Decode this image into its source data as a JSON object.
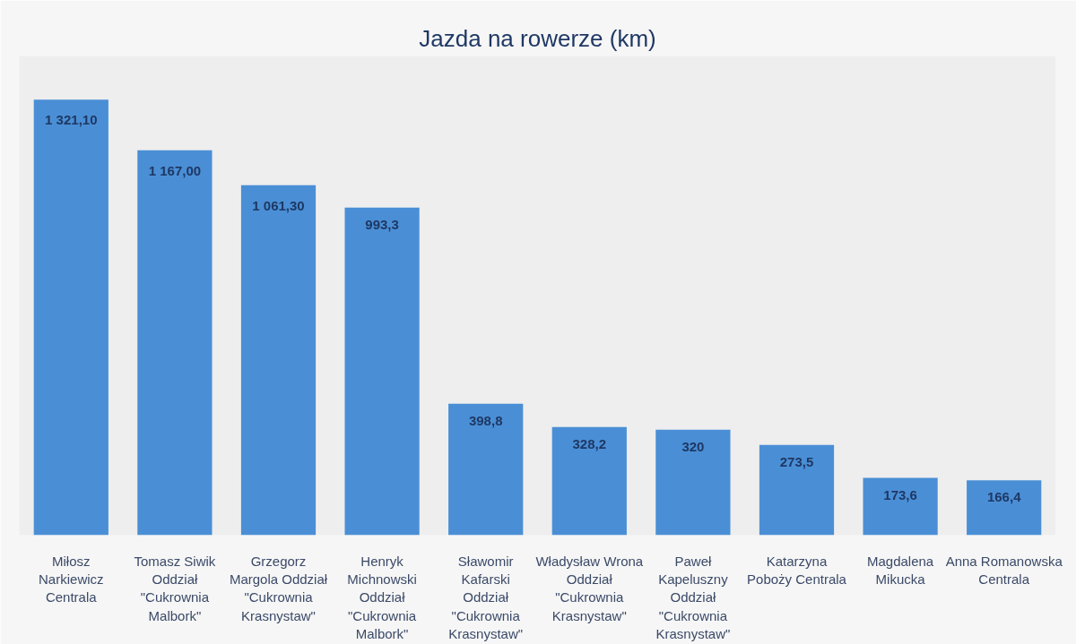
{
  "chart_data": {
    "type": "bar",
    "title": "Jazda na rowerze (km)",
    "categories": [
      "Miłosz Narkiewicz Centrala",
      "Tomasz Siwik Oddział \"Cukrownia Malbork\"",
      "Grzegorz Margola Oddział \"Cukrownia Krasnystaw\"",
      "Henryk Michnowski Oddział \"Cukrownia Malbork\"",
      "Sławomir Kafarski Oddział \"Cukrownia Krasnystaw\"",
      "Władysław Wrona Oddział \"Cukrownia Krasnystaw\"",
      "Paweł Kapeluszny Oddział \"Cukrownia Krasnystaw\"",
      "Katarzyna Poboży Centrala",
      "Magdalena Mikucka",
      "Anna Romanowska Centrala"
    ],
    "values": [
      1321.1,
      1167.0,
      1061.3,
      993.3,
      398.8,
      328.2,
      320,
      273.5,
      173.6,
      166.4
    ],
    "value_labels": [
      "1 321,10",
      "1 167,00",
      "1 061,30",
      "993,3",
      "398,8",
      "328,2",
      "320",
      "273,5",
      "173,6",
      "166,4"
    ],
    "color": "#4a8fd6"
  }
}
